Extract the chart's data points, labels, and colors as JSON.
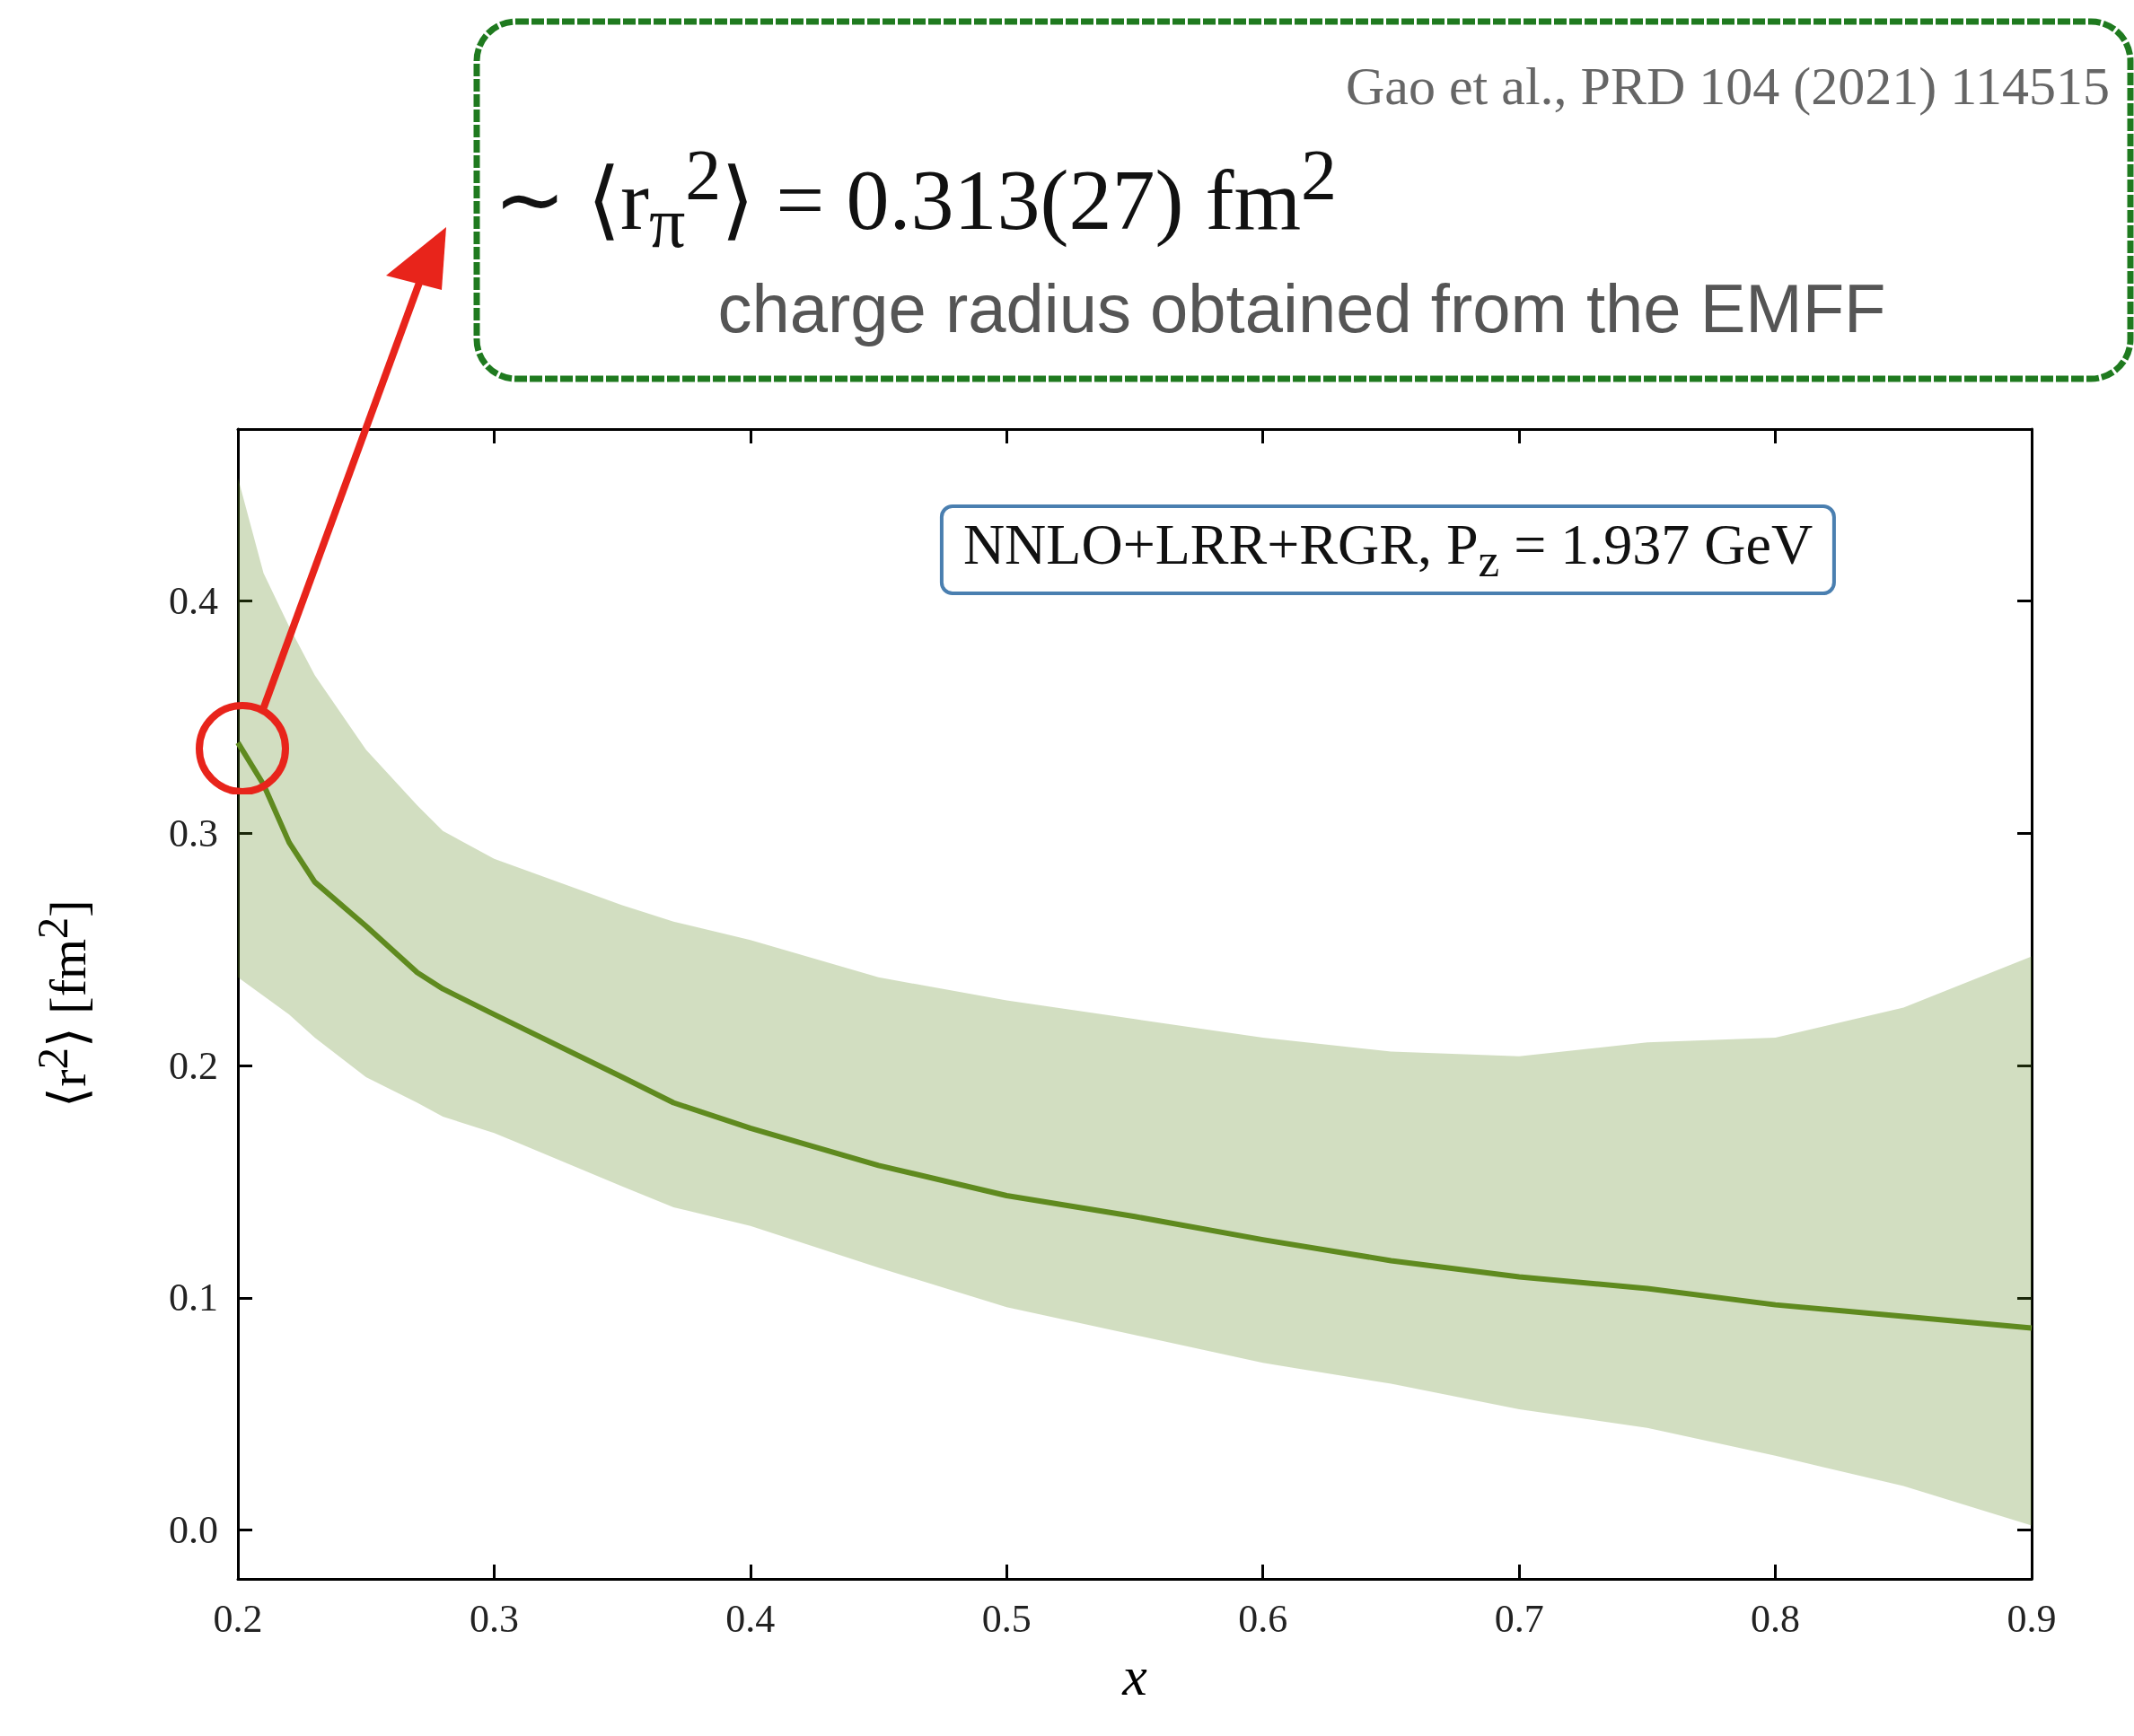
{
  "chart_data": {
    "type": "line",
    "xlabel": "x",
    "ylabel": "⟨r$^{2}$⟩ [fm$^{2}$]",
    "x": [
      0.2,
      0.21,
      0.22,
      0.23,
      0.25,
      0.27,
      0.28,
      0.3,
      0.35,
      0.37,
      0.4,
      0.45,
      0.5,
      0.55,
      0.6,
      0.65,
      0.7,
      0.75,
      0.8,
      0.85,
      0.9
    ],
    "series": [
      {
        "color": "#5f8a1f",
        "values": [
          0.339,
          0.321,
          0.296,
          0.279,
          0.26,
          0.24,
          0.233,
          0.222,
          0.195,
          0.184,
          0.173,
          0.157,
          0.144,
          0.135,
          0.125,
          0.116,
          0.109,
          0.104,
          0.097,
          0.092,
          0.087
        ],
        "lower": [
          0.238,
          0.23,
          0.222,
          0.212,
          0.195,
          0.184,
          0.178,
          0.171,
          0.148,
          0.139,
          0.131,
          0.113,
          0.096,
          0.084,
          0.072,
          0.063,
          0.052,
          0.044,
          0.032,
          0.019,
          0.002
        ],
        "upper": [
          0.453,
          0.412,
          0.389,
          0.368,
          0.336,
          0.312,
          0.301,
          0.289,
          0.269,
          0.262,
          0.254,
          0.238,
          0.228,
          0.22,
          0.212,
          0.206,
          0.204,
          0.21,
          0.212,
          0.225,
          0.247
        ]
      }
    ],
    "xlim": [
      0.2,
      0.9
    ],
    "xticks": [
      0.2,
      0.3,
      0.4,
      0.5,
      0.6,
      0.7,
      0.8,
      0.9
    ],
    "ylim": [
      -0.021,
      0.474
    ],
    "yticks": [
      {
        "value": 0,
        "label": "0.0"
      },
      0.1,
      0.2,
      0.3,
      0.4
    ],
    "line_style": "solid",
    "grid": false,
    "annotations": [
      "Gao et al., PRD 104 (2021) 114515",
      "∼ ⟨r$_{π}$$^{2}$⟩ = 0.313(27) fm$^{2}$",
      "charge radius obtained from the EMFF",
      "NNLO+LRR+RGR, P$_{z}$ = 1.937 GeV"
    ]
  }
}
